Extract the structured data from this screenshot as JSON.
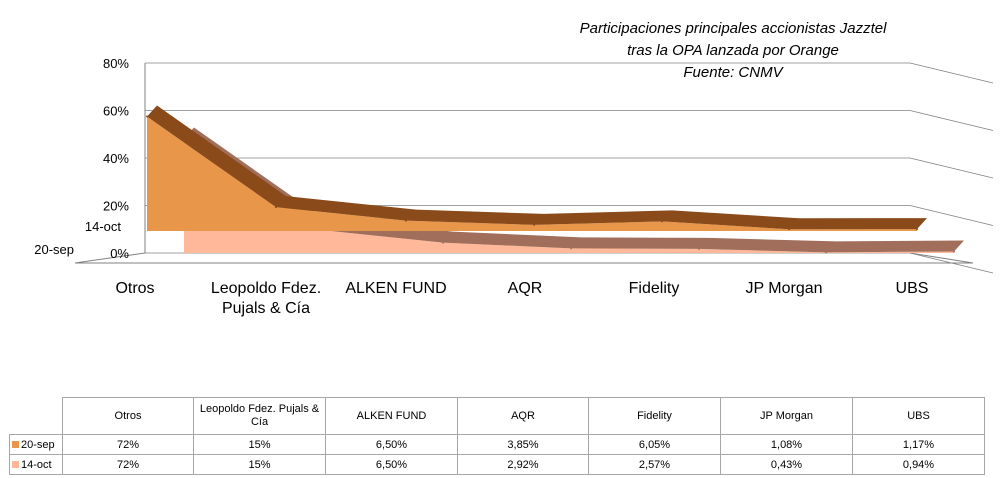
{
  "chart_data": {
    "type": "area",
    "title_lines": [
      "Participaciones principales accionistas Jazztel",
      "tras la OPA lanzada por Orange",
      "Fuente: CNMV"
    ],
    "categories": [
      "Otros",
      "Leopoldo Fdez. Pujals & Cía",
      "ALKEN FUND",
      "AQR",
      "Fidelity",
      "JP Morgan",
      "UBS"
    ],
    "category_lines": [
      [
        "Otros"
      ],
      [
        "Leopoldo Fdez.",
        "Pujals &  Cía"
      ],
      [
        "ALKEN FUND"
      ],
      [
        "AQR"
      ],
      [
        "Fidelity"
      ],
      [
        "JP Morgan"
      ],
      [
        "UBS"
      ]
    ],
    "ylim": [
      0,
      0.8
    ],
    "yticks": [
      0,
      0.2,
      0.4,
      0.6,
      0.8
    ],
    "ytick_labels": [
      "0%",
      "20%",
      "40%",
      "60%",
      "80%"
    ],
    "grid": true,
    "series": [
      {
        "name": "20-sep",
        "values": [
          0.72,
          0.15,
          0.065,
          0.0385,
          0.0605,
          0.0108,
          0.0117
        ],
        "labels": [
          "72%",
          "15%",
          "6,50%",
          "3,85%",
          "6,05%",
          "1,08%",
          "1,17%"
        ],
        "color": "#e8974a",
        "edge": "#8a4a1a"
      },
      {
        "name": "14-oct",
        "values": [
          0.72,
          0.15,
          0.065,
          0.0292,
          0.0257,
          0.0043,
          0.0094
        ],
        "labels": [
          "72%",
          "15%",
          "6,50%",
          "2,92%",
          "2,57%",
          "0,43%",
          "0,94%"
        ],
        "color": "#ffb899",
        "edge": "#a06e5a"
      }
    ]
  }
}
